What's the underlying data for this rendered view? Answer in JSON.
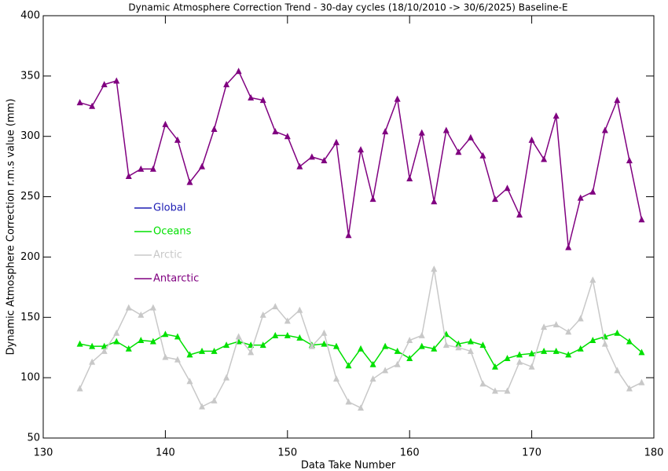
{
  "chart_data": {
    "type": "line",
    "title": "Dynamic Atmosphere Correction Trend - 30-day cycles (18/10/2010 -> 30/6/2025) Baseline-E",
    "x_label": "Data Take Number",
    "y_label": "Dynamic Atmosphere Correction r.m.s value (mm)",
    "x": [
      133,
      134,
      135,
      136,
      137,
      138,
      139,
      140,
      141,
      142,
      143,
      144,
      145,
      146,
      147,
      148,
      149,
      150,
      151,
      152,
      153,
      154,
      155,
      156,
      157,
      158,
      159,
      160,
      161,
      162,
      163,
      164,
      165,
      166,
      167,
      168,
      169,
      170,
      171,
      172,
      173,
      174,
      175,
      176,
      177,
      178,
      179
    ],
    "series": [
      {
        "name": "Global",
        "color": "#1c1cb4",
        "values": [
          null,
          null,
          null,
          null,
          null,
          null,
          null,
          null,
          null,
          null,
          null,
          null,
          null,
          null,
          null,
          null,
          null,
          null,
          null,
          null,
          null,
          null,
          null,
          null,
          null,
          null,
          null,
          null,
          null,
          null,
          null,
          null,
          null,
          null,
          null,
          null,
          null,
          null,
          null,
          null,
          null,
          null,
          null,
          null,
          null,
          null,
          null
        ]
      },
      {
        "name": "Oceans",
        "color": "#00e000",
        "values": [
          128,
          126,
          126,
          130,
          124,
          131,
          130,
          136,
          134,
          119,
          122,
          122,
          127,
          130,
          127,
          127,
          135,
          135,
          133,
          127,
          128,
          126,
          110,
          124,
          111,
          126,
          122,
          116,
          126,
          124,
          136,
          128,
          130,
          127,
          109,
          116,
          119,
          120,
          122,
          122,
          119,
          124,
          131,
          134,
          137,
          130,
          121
        ]
      },
      {
        "name": "Arctic",
        "color": "#c8c8c8",
        "values": [
          91,
          113,
          122,
          137,
          158,
          152,
          158,
          117,
          115,
          97,
          76,
          81,
          100,
          134,
          121,
          152,
          159,
          147,
          156,
          126,
          137,
          99,
          80,
          75,
          99,
          106,
          111,
          131,
          135,
          190,
          127,
          125,
          122,
          95,
          89,
          89,
          113,
          109,
          142,
          144,
          138,
          149,
          181,
          128,
          106,
          91,
          96
        ]
      },
      {
        "name": "Antarctic",
        "color": "#800080",
        "values": [
          328,
          325,
          343,
          346,
          267,
          273,
          273,
          310,
          297,
          262,
          275,
          306,
          343,
          354,
          332,
          330,
          304,
          300,
          275,
          283,
          280,
          295,
          218,
          289,
          248,
          304,
          331,
          265,
          303,
          246,
          305,
          287,
          299,
          284,
          248,
          257,
          235,
          297,
          281,
          317,
          208,
          249,
          254,
          305,
          330,
          280,
          231
        ]
      }
    ],
    "xlim": [
      130,
      180
    ],
    "xticks": [
      130,
      140,
      150,
      160,
      170,
      180
    ],
    "ylim": [
      50,
      400
    ],
    "yticks": [
      50,
      100,
      150,
      200,
      250,
      300,
      350,
      400
    ]
  }
}
